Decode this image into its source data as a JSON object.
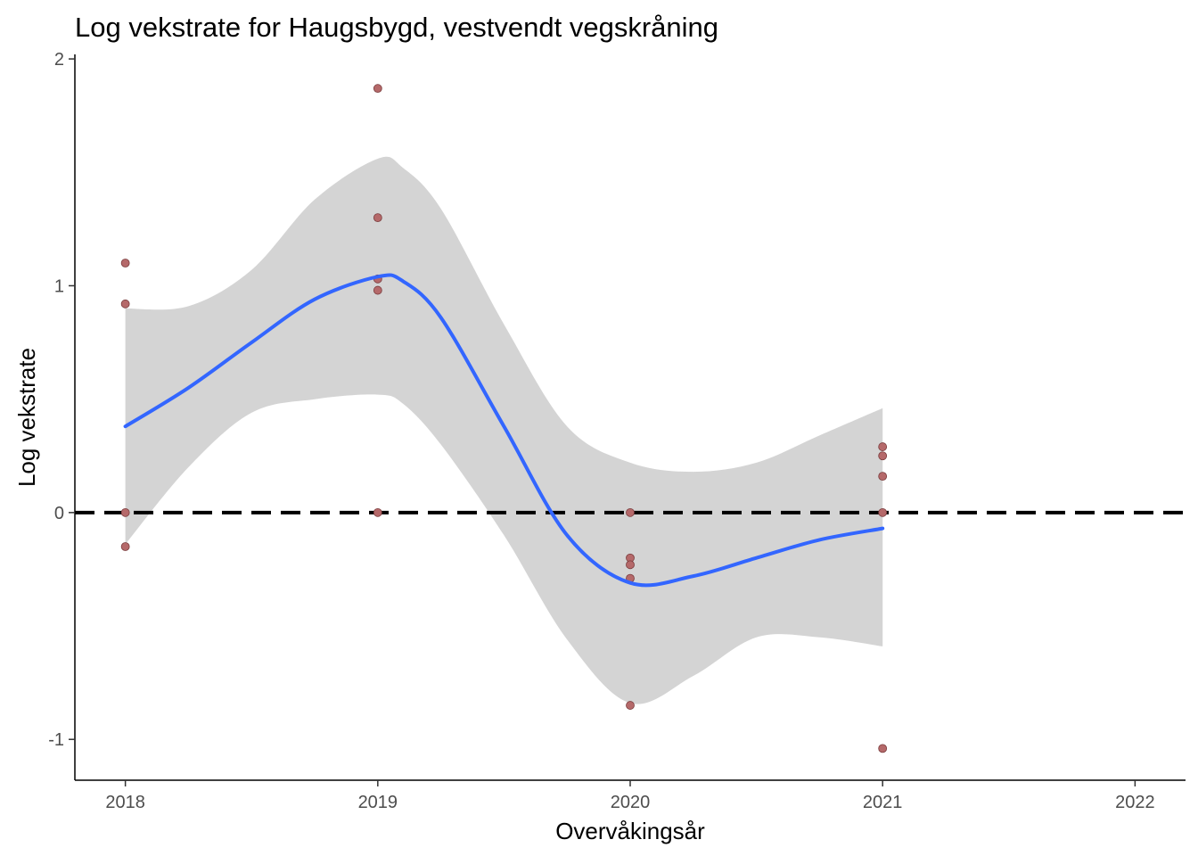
{
  "chart_data": {
    "type": "scatter",
    "title": "Log vekstrate for Haugsbygd, vestvendt vegskråning",
    "xlabel": "Overvåkingsår",
    "ylabel": "Log vekstrate",
    "xlim": [
      2017.8,
      2022.2
    ],
    "ylim": [
      -1.18,
      2.02
    ],
    "x_ticks": [
      2018,
      2019,
      2020,
      2021,
      2022
    ],
    "x_tick_labels": [
      "2018",
      "2019",
      "2020",
      "2021",
      "2022"
    ],
    "y_ticks": [
      -1,
      0,
      1,
      2
    ],
    "y_tick_labels": [
      "-1",
      "0",
      "1",
      "2"
    ],
    "reference_line": {
      "y": 0,
      "style": "dashed",
      "color": "#000000"
    },
    "points": {
      "color": "#b5696a",
      "x": [
        2018,
        2018,
        2018,
        2018,
        2019,
        2019,
        2019,
        2019,
        2019,
        2020,
        2020,
        2020,
        2020,
        2020,
        2021,
        2021,
        2021,
        2021,
        2021
      ],
      "y": [
        1.1,
        0.92,
        0.0,
        -0.15,
        1.87,
        1.3,
        1.03,
        0.98,
        0.0,
        0.0,
        -0.2,
        -0.23,
        -0.29,
        -0.85,
        0.29,
        0.25,
        0.16,
        0.0,
        -1.04
      ]
    },
    "smooth": {
      "color": "#3366ff",
      "band_color": "#d4d4d4",
      "x": [
        2018.0,
        2018.25,
        2018.5,
        2018.75,
        2019.0,
        2019.1,
        2019.25,
        2019.5,
        2019.75,
        2020.0,
        2020.25,
        2020.5,
        2020.75,
        2021.0
      ],
      "y": [
        0.38,
        0.55,
        0.75,
        0.94,
        1.04,
        1.02,
        0.86,
        0.38,
        -0.1,
        -0.31,
        -0.28,
        -0.2,
        -0.12,
        -0.07
      ],
      "lower": [
        -0.14,
        0.2,
        0.44,
        0.5,
        0.52,
        0.48,
        0.3,
        -0.1,
        -0.56,
        -0.84,
        -0.72,
        -0.55,
        -0.55,
        -0.59
      ],
      "upper": [
        0.9,
        0.91,
        1.07,
        1.38,
        1.56,
        1.52,
        1.34,
        0.83,
        0.38,
        0.22,
        0.18,
        0.22,
        0.34,
        0.46
      ]
    }
  }
}
